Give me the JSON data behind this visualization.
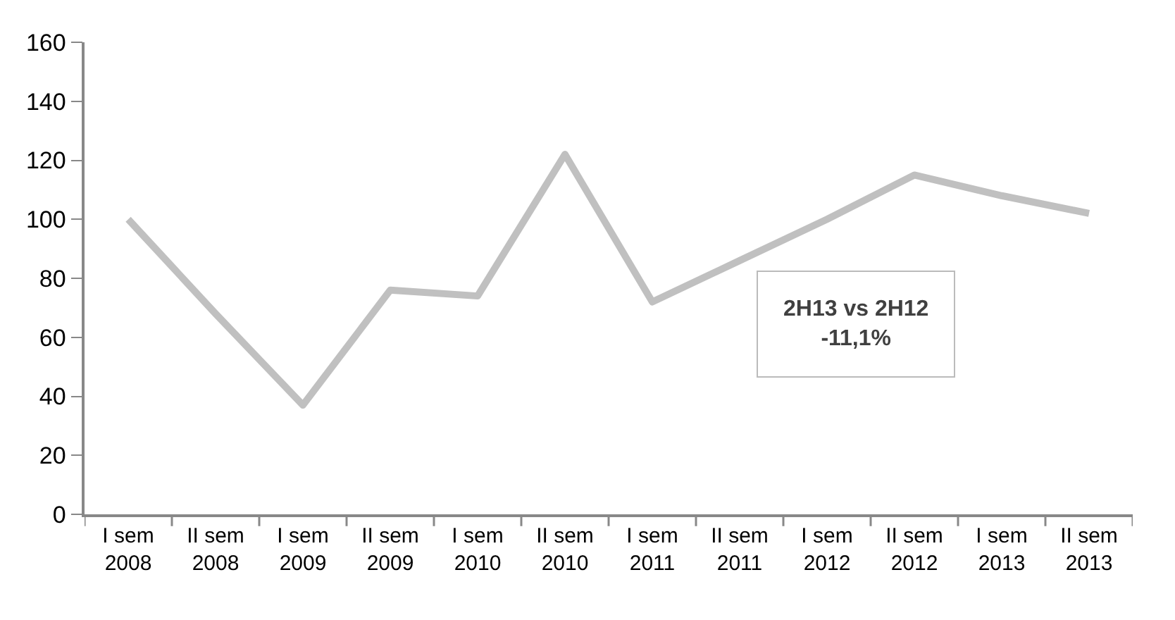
{
  "chart_data": {
    "type": "line",
    "categories": [
      "I sem 2008",
      "II sem 2008",
      "I sem 2009",
      "II sem 2009",
      "I sem 2010",
      "II sem 2010",
      "I sem 2011",
      "II sem 2011",
      "I sem 2012",
      "II sem 2012",
      "I sem 2013",
      "II sem 2013"
    ],
    "series": [
      {
        "color": "#c0c0c0",
        "values": [
          100,
          68,
          37,
          76,
          74,
          122,
          72,
          86,
          100,
          115,
          108,
          102
        ]
      }
    ],
    "ylim": [
      0,
      160
    ],
    "yticks": [
      0,
      20,
      40,
      60,
      80,
      100,
      120,
      140,
      160
    ],
    "marker": "none",
    "line_style": "solid",
    "annotations": [
      "2H13 vs 2H12\n-11,1%"
    ]
  }
}
